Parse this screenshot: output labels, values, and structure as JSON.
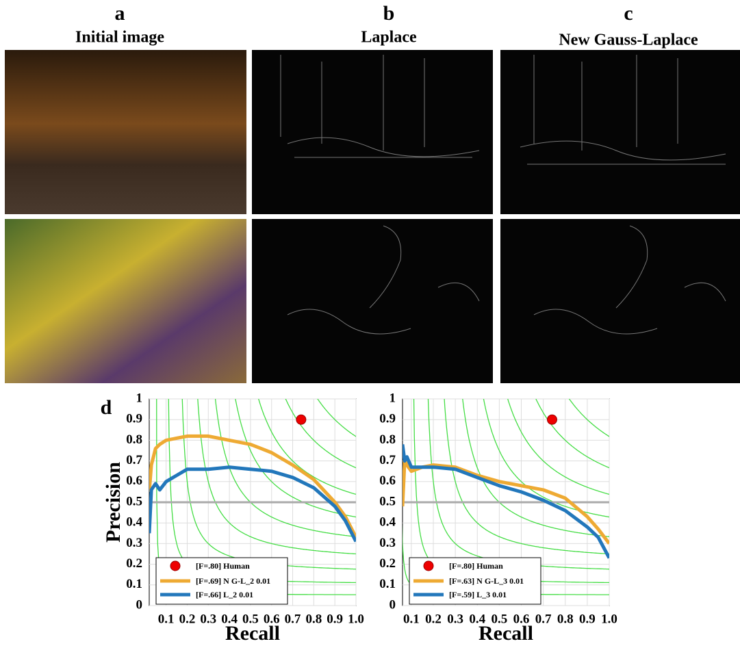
{
  "panels": [
    {
      "letter": "a",
      "title": "Initial image"
    },
    {
      "letter": "b",
      "title": "Laplace"
    },
    {
      "letter": "c",
      "title": "New Gauss-Laplace"
    }
  ],
  "chart_label": "d",
  "chart_data": [
    {
      "type": "line",
      "xlabel": "Recall",
      "ylabel": "Precision",
      "x": [
        0.02,
        0.03,
        0.05,
        0.07,
        0.1,
        0.2,
        0.3,
        0.4,
        0.5,
        0.6,
        0.7,
        0.8,
        0.9,
        0.95,
        1
      ],
      "series": [
        {
          "name": "[F=.69] N G-L_2 0.01",
          "color": "#eeaa33",
          "values": [
            0.55,
            0.68,
            0.76,
            0.78,
            0.8,
            0.82,
            0.82,
            0.8,
            0.78,
            0.74,
            0.68,
            0.61,
            0.5,
            0.43,
            0.33
          ]
        },
        {
          "name": "[F=.66] L_2 0.01",
          "color": "#2277bb",
          "values": [
            0.35,
            0.56,
            0.59,
            0.56,
            0.6,
            0.66,
            0.66,
            0.67,
            0.66,
            0.65,
            0.62,
            0.57,
            0.48,
            0.41,
            0.31
          ]
        }
      ],
      "points": [
        {
          "name": "[F=.80] Human",
          "x": 0.74,
          "y": 0.9,
          "color": "#ee0000"
        }
      ],
      "xlim": [
        0.02,
        1
      ],
      "ylim": [
        0,
        1
      ],
      "xticks": [
        0.1,
        0.2,
        0.3,
        0.4,
        0.5,
        0.6,
        0.7,
        0.8,
        0.9,
        {
          "value": 1,
          "label": "1.0"
        }
      ],
      "yticks": [
        0,
        0.1,
        0.2,
        0.3,
        0.4,
        0.5,
        0.6,
        0.7,
        0.8,
        0.9,
        1
      ],
      "grid": true,
      "hline": 0.5,
      "iso_f": [
        0.1,
        0.2,
        0.3,
        0.4,
        0.5,
        0.6,
        0.7,
        0.8,
        0.9
      ]
    },
    {
      "type": "line",
      "xlabel": "Recall",
      "x": [
        0.06,
        0.07,
        0.08,
        0.1,
        0.15,
        0.2,
        0.3,
        0.4,
        0.5,
        0.6,
        0.7,
        0.8,
        0.9,
        0.95,
        1
      ],
      "series": [
        {
          "name": "[F=.63] N G-L_3 0.01",
          "color": "#eeaa33",
          "values": [
            0.48,
            0.7,
            0.68,
            0.65,
            0.67,
            0.68,
            0.67,
            0.63,
            0.6,
            0.58,
            0.56,
            0.52,
            0.43,
            0.37,
            0.3
          ]
        },
        {
          "name": "[F=.59] L_3 0.01",
          "color": "#2277bb",
          "values": [
            0.78,
            0.7,
            0.72,
            0.67,
            0.67,
            0.67,
            0.66,
            0.62,
            0.58,
            0.55,
            0.51,
            0.46,
            0.38,
            0.33,
            0.23
          ]
        }
      ],
      "points": [
        {
          "name": "[F=.80] Human",
          "x": 0.74,
          "y": 0.9,
          "color": "#ee0000"
        }
      ],
      "xlim": [
        0.06,
        1
      ],
      "ylim": [
        0,
        1
      ],
      "xticks": [
        0.1,
        0.2,
        0.3,
        0.4,
        0.5,
        0.6,
        0.7,
        0.8,
        0.9,
        {
          "value": 1,
          "label": "1.0"
        }
      ],
      "yticks": [
        0,
        0.1,
        0.2,
        0.3,
        0.4,
        0.5,
        0.6,
        0.7,
        0.8,
        0.9,
        1
      ],
      "grid": true,
      "hline": 0.5,
      "iso_f": [
        0.1,
        0.2,
        0.3,
        0.4,
        0.5,
        0.6,
        0.7,
        0.8,
        0.9
      ]
    }
  ]
}
